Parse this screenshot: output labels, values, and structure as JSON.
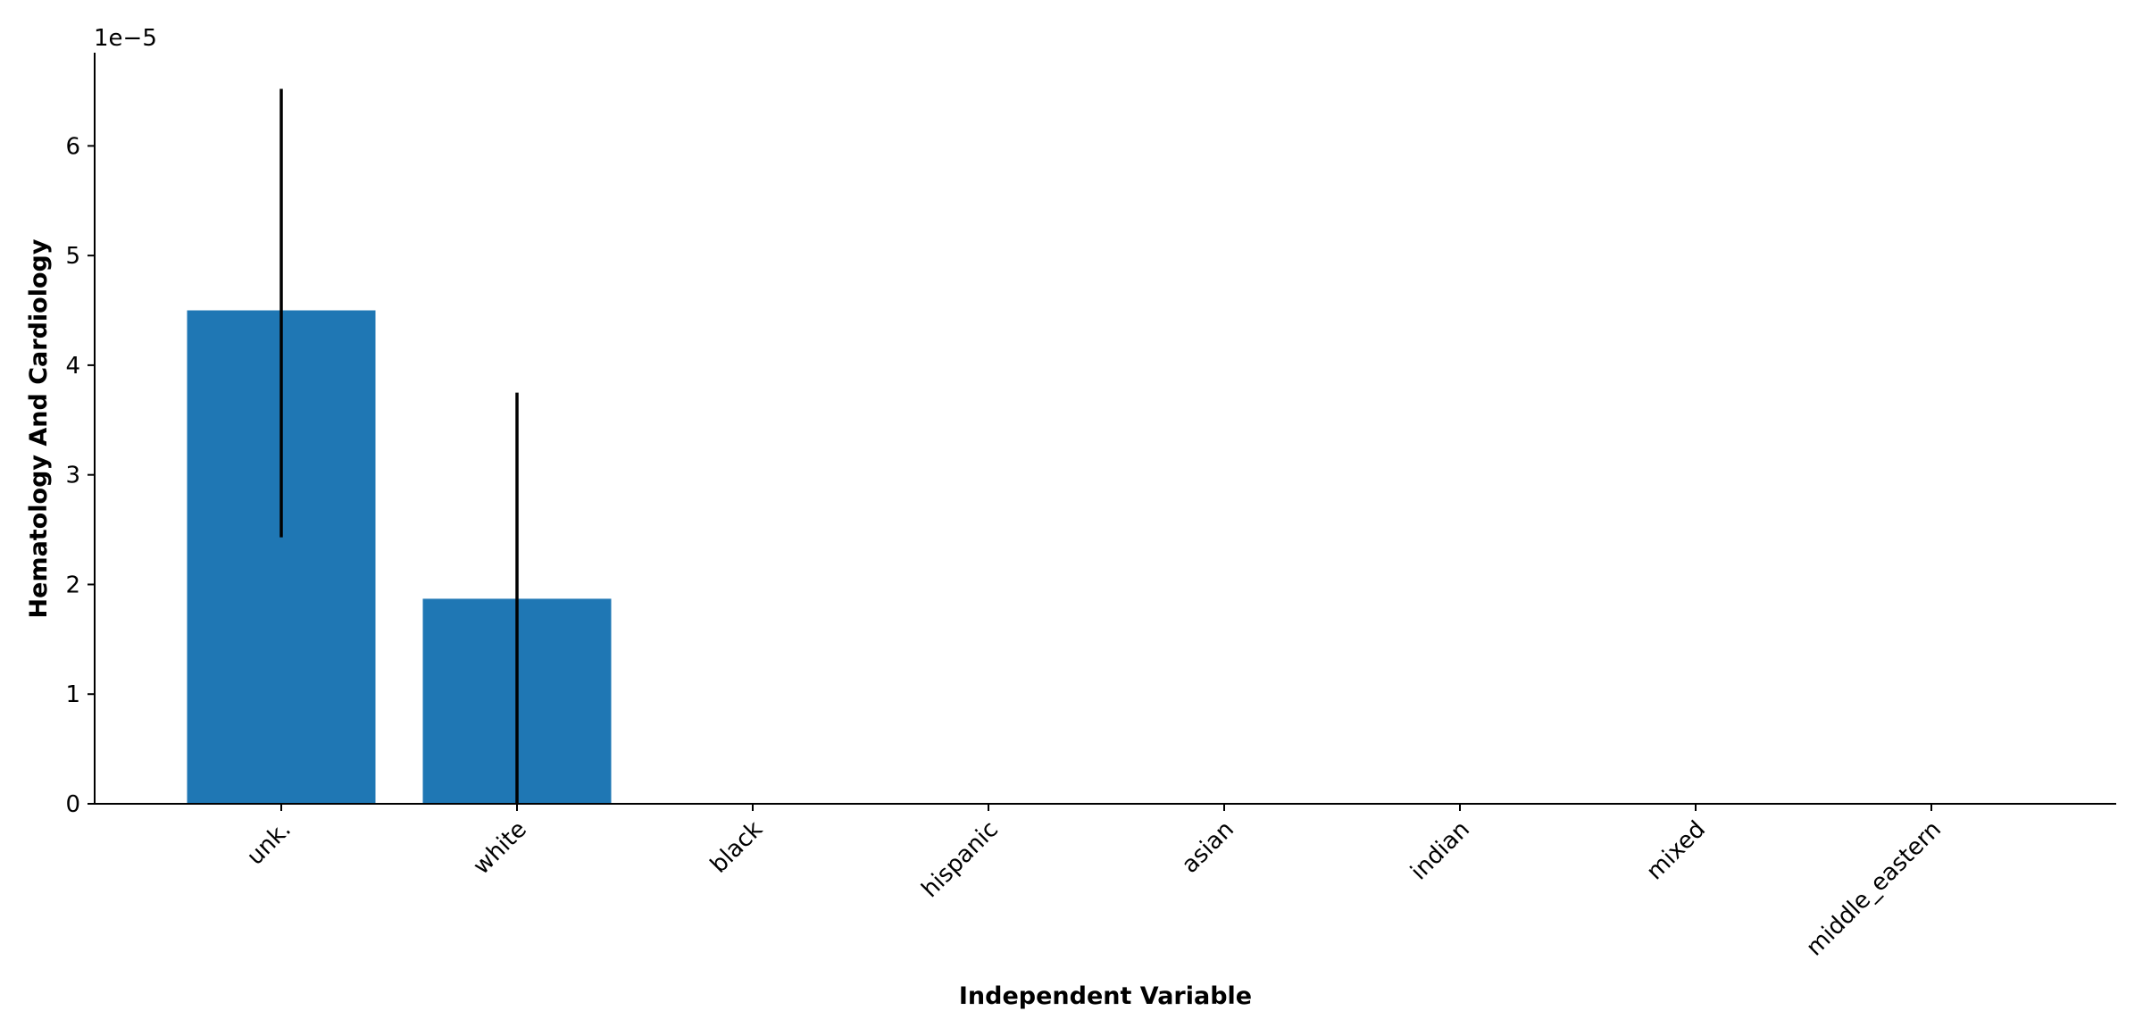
{
  "chart_data": {
    "type": "bar",
    "categories": [
      "unk.",
      "white",
      "black",
      "hispanic",
      "asian",
      "indian",
      "mixed",
      "middle_eastern"
    ],
    "values": [
      4.5e-05,
      1.87e-05,
      0,
      0,
      0,
      0,
      0,
      0
    ],
    "errors": [
      [
        2.43e-05,
        6.52e-05
      ],
      [
        0,
        3.75e-05
      ],
      null,
      null,
      null,
      null,
      null,
      null
    ],
    "xlabel": "Independent Variable",
    "ylabel": "Hematology And Cardiology",
    "yticks": [
      0,
      1,
      2,
      3,
      4,
      5,
      6
    ],
    "ytick_labels": [
      "0",
      "1",
      "2",
      "3",
      "4",
      "5",
      "6"
    ],
    "y_offset_text": "1e−5",
    "y_scale": 1e-05,
    "ylim": [
      0,
      6.85e-05
    ],
    "grid": false,
    "bar_color": "#1f77b4",
    "error_color": "#000000"
  }
}
